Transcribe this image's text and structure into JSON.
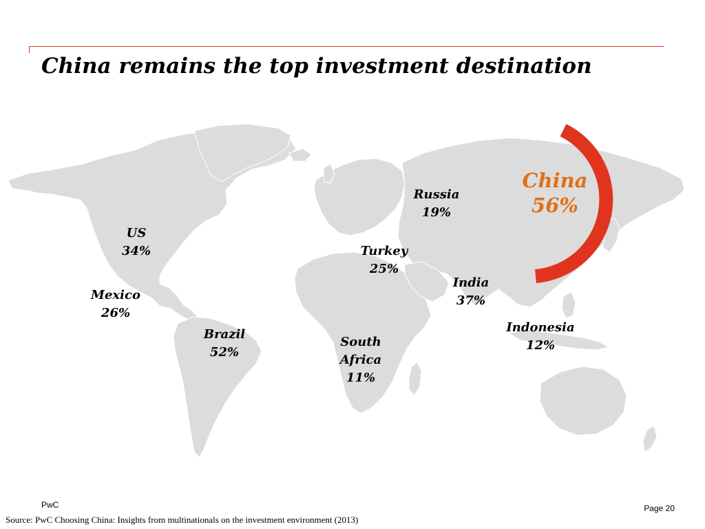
{
  "title": "China remains the top investment destination",
  "colors": {
    "accent_rule": "#d93a2a",
    "china_highlight": "#e07018",
    "china_arc": "#e0341f",
    "land": "#dcdcdc"
  },
  "countries": {
    "china": {
      "name": "China",
      "pct": "56%"
    },
    "russia": {
      "name": "Russia",
      "pct": "19%"
    },
    "us": {
      "name": "US",
      "pct": "34%"
    },
    "turkey": {
      "name": "Turkey",
      "pct": "25%"
    },
    "india": {
      "name": "India",
      "pct": "37%"
    },
    "mexico": {
      "name": "Mexico",
      "pct": "26%"
    },
    "indonesia": {
      "name": "Indonesia",
      "pct": "12%"
    },
    "brazil": {
      "name": "Brazil",
      "pct": "52%"
    },
    "south_africa": {
      "name_line1": "South",
      "name_line2": "Africa",
      "pct": "11%"
    }
  },
  "footer": {
    "brand": "PwC",
    "page": "Page 20",
    "source": "Source: PwC  Choosing China: Insights from multinationals on the investment environment (2013)"
  }
}
